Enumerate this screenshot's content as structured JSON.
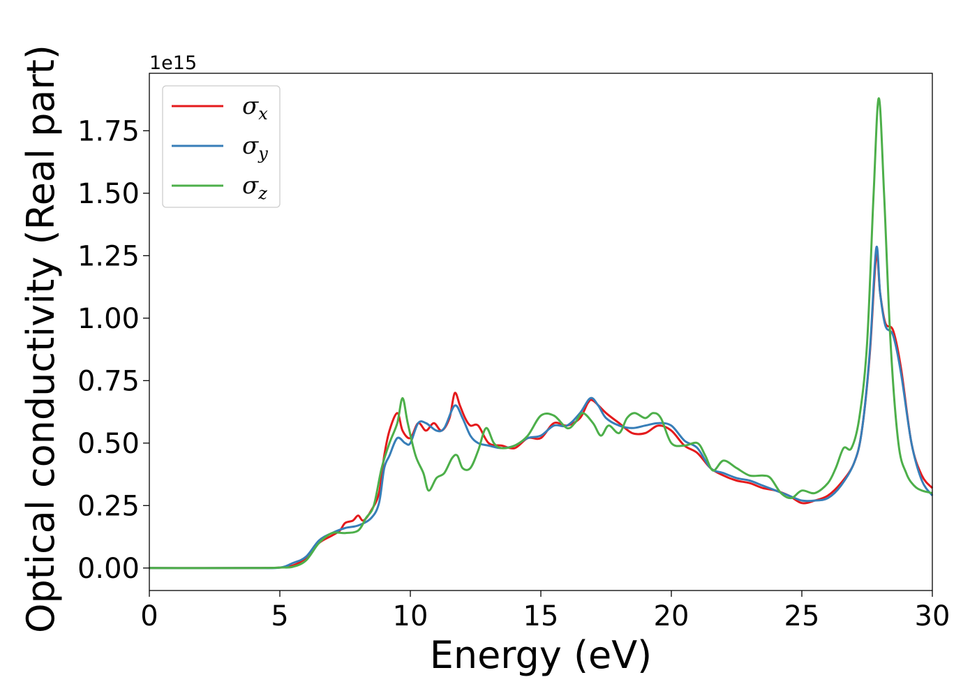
{
  "chart_data": {
    "type": "line",
    "title": "",
    "xlabel": "Energy (eV)",
    "ylabel": "Optical conductivity (Real part)",
    "y_offset_label": "1e15",
    "xlim": [
      0,
      30
    ],
    "ylim": [
      -0.09,
      1.98
    ],
    "x_ticks": [
      0,
      5,
      10,
      15,
      20,
      25,
      30
    ],
    "x_tick_labels": [
      "0",
      "5",
      "10",
      "15",
      "20",
      "25",
      "30"
    ],
    "y_ticks": [
      0.0,
      0.25,
      0.5,
      0.75,
      1.0,
      1.25,
      1.5,
      1.75
    ],
    "y_tick_labels": [
      "0.00",
      "0.25",
      "0.50",
      "0.75",
      "1.00",
      "1.25",
      "1.50",
      "1.75"
    ],
    "grid": false,
    "legend_position": "top-left",
    "series": [
      {
        "name": "σx",
        "legend_base": "σ",
        "legend_sub": "x",
        "color": "#e41a1c",
        "points": [
          [
            0,
            0
          ],
          [
            4,
            0
          ],
          [
            5,
            0.002
          ],
          [
            5.5,
            0.01
          ],
          [
            6,
            0.04
          ],
          [
            6.5,
            0.1
          ],
          [
            7,
            0.13
          ],
          [
            7.3,
            0.15
          ],
          [
            7.5,
            0.18
          ],
          [
            7.8,
            0.19
          ],
          [
            8,
            0.21
          ],
          [
            8.2,
            0.19
          ],
          [
            8.5,
            0.23
          ],
          [
            8.8,
            0.3
          ],
          [
            9.0,
            0.45
          ],
          [
            9.2,
            0.55
          ],
          [
            9.5,
            0.62
          ],
          [
            9.7,
            0.55
          ],
          [
            10.0,
            0.52
          ],
          [
            10.3,
            0.58
          ],
          [
            10.6,
            0.55
          ],
          [
            10.9,
            0.58
          ],
          [
            11.2,
            0.55
          ],
          [
            11.5,
            0.6
          ],
          [
            11.7,
            0.7
          ],
          [
            11.9,
            0.65
          ],
          [
            12.1,
            0.6
          ],
          [
            12.3,
            0.57
          ],
          [
            12.6,
            0.57
          ],
          [
            13.0,
            0.5
          ],
          [
            13.5,
            0.49
          ],
          [
            14.0,
            0.48
          ],
          [
            14.5,
            0.52
          ],
          [
            15.0,
            0.52
          ],
          [
            15.5,
            0.58
          ],
          [
            16.0,
            0.57
          ],
          [
            16.5,
            0.6
          ],
          [
            16.8,
            0.66
          ],
          [
            17.0,
            0.67
          ],
          [
            17.5,
            0.62
          ],
          [
            18.0,
            0.58
          ],
          [
            18.5,
            0.54
          ],
          [
            19.0,
            0.54
          ],
          [
            19.5,
            0.57
          ],
          [
            20.0,
            0.55
          ],
          [
            20.5,
            0.49
          ],
          [
            21.0,
            0.46
          ],
          [
            21.5,
            0.4
          ],
          [
            22.0,
            0.37
          ],
          [
            22.5,
            0.35
          ],
          [
            23.0,
            0.34
          ],
          [
            23.5,
            0.32
          ],
          [
            24.0,
            0.31
          ],
          [
            24.5,
            0.29
          ],
          [
            25.0,
            0.26
          ],
          [
            25.5,
            0.27
          ],
          [
            26.0,
            0.29
          ],
          [
            26.5,
            0.34
          ],
          [
            27.0,
            0.42
          ],
          [
            27.3,
            0.55
          ],
          [
            27.6,
            0.85
          ],
          [
            27.85,
            1.25
          ],
          [
            28.0,
            1.1
          ],
          [
            28.2,
            0.98
          ],
          [
            28.5,
            0.95
          ],
          [
            28.8,
            0.8
          ],
          [
            29.2,
            0.5
          ],
          [
            29.6,
            0.37
          ],
          [
            30.0,
            0.32
          ]
        ]
      },
      {
        "name": "σy",
        "legend_base": "σ",
        "legend_sub": "y",
        "color": "#377eb8",
        "points": [
          [
            0,
            0
          ],
          [
            4,
            0
          ],
          [
            5,
            0.002
          ],
          [
            5.5,
            0.02
          ],
          [
            6,
            0.045
          ],
          [
            6.5,
            0.11
          ],
          [
            7,
            0.14
          ],
          [
            7.5,
            0.16
          ],
          [
            8,
            0.17
          ],
          [
            8.5,
            0.2
          ],
          [
            8.8,
            0.26
          ],
          [
            9.0,
            0.4
          ],
          [
            9.2,
            0.45
          ],
          [
            9.5,
            0.52
          ],
          [
            9.8,
            0.5
          ],
          [
            10.0,
            0.5
          ],
          [
            10.3,
            0.58
          ],
          [
            10.6,
            0.58
          ],
          [
            11.0,
            0.55
          ],
          [
            11.3,
            0.56
          ],
          [
            11.7,
            0.65
          ],
          [
            12.0,
            0.6
          ],
          [
            12.3,
            0.53
          ],
          [
            12.6,
            0.5
          ],
          [
            13.0,
            0.49
          ],
          [
            13.5,
            0.48
          ],
          [
            14.0,
            0.49
          ],
          [
            14.5,
            0.52
          ],
          [
            15.0,
            0.53
          ],
          [
            15.5,
            0.57
          ],
          [
            16.0,
            0.57
          ],
          [
            16.5,
            0.62
          ],
          [
            16.9,
            0.68
          ],
          [
            17.2,
            0.65
          ],
          [
            17.5,
            0.6
          ],
          [
            18.0,
            0.57
          ],
          [
            18.5,
            0.56
          ],
          [
            19.0,
            0.57
          ],
          [
            19.5,
            0.58
          ],
          [
            20.0,
            0.57
          ],
          [
            20.5,
            0.51
          ],
          [
            21.0,
            0.48
          ],
          [
            21.5,
            0.4
          ],
          [
            22.0,
            0.38
          ],
          [
            22.5,
            0.36
          ],
          [
            23.0,
            0.35
          ],
          [
            23.5,
            0.33
          ],
          [
            24.0,
            0.31
          ],
          [
            24.5,
            0.29
          ],
          [
            25.0,
            0.27
          ],
          [
            25.5,
            0.27
          ],
          [
            26.0,
            0.28
          ],
          [
            26.5,
            0.33
          ],
          [
            27.0,
            0.42
          ],
          [
            27.3,
            0.55
          ],
          [
            27.6,
            0.86
          ],
          [
            27.85,
            1.28
          ],
          [
            28.0,
            1.1
          ],
          [
            28.2,
            0.97
          ],
          [
            28.5,
            0.93
          ],
          [
            28.8,
            0.78
          ],
          [
            29.2,
            0.5
          ],
          [
            29.6,
            0.35
          ],
          [
            30.0,
            0.29
          ]
        ]
      },
      {
        "name": "σz",
        "legend_base": "σ",
        "legend_sub": "z",
        "color": "#4daf4a",
        "points": [
          [
            0,
            0
          ],
          [
            4,
            0
          ],
          [
            5,
            0.002
          ],
          [
            5.5,
            0.005
          ],
          [
            6,
            0.03
          ],
          [
            6.5,
            0.1
          ],
          [
            7,
            0.14
          ],
          [
            7.5,
            0.14
          ],
          [
            8,
            0.15
          ],
          [
            8.3,
            0.2
          ],
          [
            8.6,
            0.25
          ],
          [
            8.9,
            0.4
          ],
          [
            9.2,
            0.5
          ],
          [
            9.5,
            0.58
          ],
          [
            9.7,
            0.68
          ],
          [
            9.9,
            0.58
          ],
          [
            10.2,
            0.45
          ],
          [
            10.5,
            0.38
          ],
          [
            10.7,
            0.31
          ],
          [
            11.0,
            0.36
          ],
          [
            11.3,
            0.38
          ],
          [
            11.6,
            0.44
          ],
          [
            11.8,
            0.45
          ],
          [
            12.0,
            0.4
          ],
          [
            12.3,
            0.4
          ],
          [
            12.6,
            0.47
          ],
          [
            12.9,
            0.56
          ],
          [
            13.2,
            0.5
          ],
          [
            13.5,
            0.48
          ],
          [
            14.0,
            0.49
          ],
          [
            14.5,
            0.53
          ],
          [
            15.0,
            0.61
          ],
          [
            15.5,
            0.61
          ],
          [
            16.0,
            0.56
          ],
          [
            16.3,
            0.58
          ],
          [
            16.6,
            0.62
          ],
          [
            17.0,
            0.58
          ],
          [
            17.3,
            0.53
          ],
          [
            17.6,
            0.57
          ],
          [
            18.0,
            0.54
          ],
          [
            18.3,
            0.6
          ],
          [
            18.6,
            0.62
          ],
          [
            19.0,
            0.6
          ],
          [
            19.3,
            0.62
          ],
          [
            19.6,
            0.6
          ],
          [
            20.0,
            0.5
          ],
          [
            20.5,
            0.49
          ],
          [
            21.0,
            0.5
          ],
          [
            21.3,
            0.45
          ],
          [
            21.6,
            0.39
          ],
          [
            22.0,
            0.43
          ],
          [
            22.5,
            0.4
          ],
          [
            23.0,
            0.37
          ],
          [
            23.5,
            0.37
          ],
          [
            23.8,
            0.36
          ],
          [
            24.2,
            0.3
          ],
          [
            24.6,
            0.28
          ],
          [
            25.0,
            0.31
          ],
          [
            25.5,
            0.3
          ],
          [
            26.0,
            0.34
          ],
          [
            26.3,
            0.4
          ],
          [
            26.6,
            0.48
          ],
          [
            26.9,
            0.48
          ],
          [
            27.2,
            0.6
          ],
          [
            27.5,
            0.9
          ],
          [
            27.75,
            1.5
          ],
          [
            27.95,
            1.88
          ],
          [
            28.15,
            1.5
          ],
          [
            28.4,
            0.9
          ],
          [
            28.7,
            0.5
          ],
          [
            29.0,
            0.38
          ],
          [
            29.3,
            0.33
          ],
          [
            29.6,
            0.31
          ],
          [
            30.0,
            0.3
          ]
        ]
      }
    ]
  }
}
